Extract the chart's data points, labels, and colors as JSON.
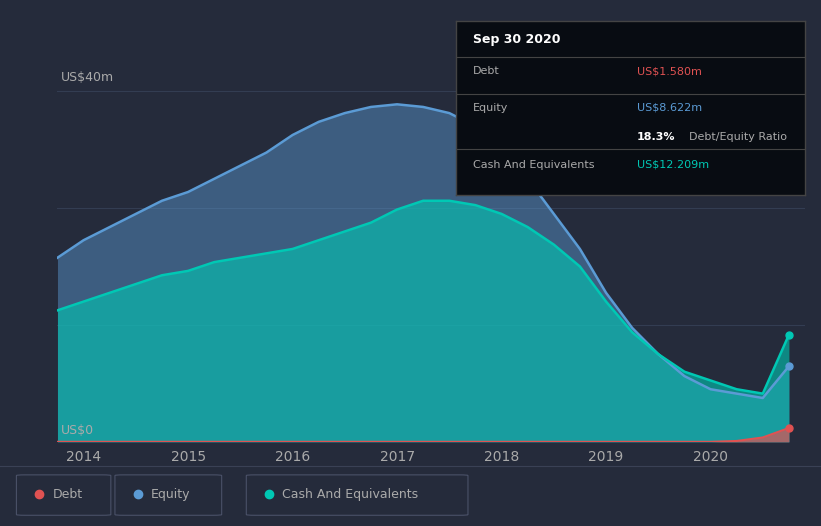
{
  "background_color": "#252b3b",
  "plot_bg_color": "#252b3b",
  "title": "Sep 30 2020",
  "debt_label": "Debt",
  "equity_label": "Equity",
  "cash_label": "Cash And Equivalents",
  "debt_value": "US$1.580m",
  "equity_value": "US$8.622m",
  "ratio_value": "18.3%",
  "ratio_label": "Debt/Equity Ratio",
  "cash_value": "US$12.209m",
  "debt_color": "#e05252",
  "equity_color": "#5b9bd5",
  "cash_color": "#00c8b4",
  "debt_value_color": "#e05252",
  "equity_value_color": "#5b9bd5",
  "cash_value_color": "#00c8b4",
  "grid_color": "#333d52",
  "text_color": "#aaaaaa",
  "tooltip_bg": "#080c12",
  "tooltip_border": "#444444",
  "years": [
    2013.75,
    2014.0,
    2014.25,
    2014.5,
    2014.75,
    2015.0,
    2015.25,
    2015.5,
    2015.75,
    2016.0,
    2016.25,
    2016.5,
    2016.75,
    2017.0,
    2017.25,
    2017.5,
    2017.75,
    2018.0,
    2018.25,
    2018.5,
    2018.75,
    2019.0,
    2019.25,
    2019.5,
    2019.75,
    2020.0,
    2020.25,
    2020.5,
    2020.75
  ],
  "equity": [
    21,
    23,
    24.5,
    26,
    27.5,
    28.5,
    30,
    31.5,
    33,
    35,
    36.5,
    37.5,
    38.2,
    38.5,
    38.2,
    37.5,
    36,
    33.5,
    30,
    26,
    22,
    17,
    13,
    10,
    7.5,
    6,
    5.5,
    5,
    8.622
  ],
  "cash": [
    15,
    16,
    17,
    18,
    19,
    19.5,
    20.5,
    21,
    21.5,
    22,
    23,
    24,
    25,
    26.5,
    27.5,
    27.5,
    27,
    26,
    24.5,
    22.5,
    20,
    16,
    12.5,
    10,
    8,
    7,
    6,
    5.5,
    12.209
  ],
  "debt": [
    0,
    0,
    0,
    0,
    0,
    0,
    0,
    0,
    0,
    0,
    0,
    0,
    0,
    0,
    0,
    0,
    0,
    0,
    0,
    0,
    0,
    0,
    0,
    0,
    0,
    0,
    0.1,
    0.5,
    1.58
  ],
  "xlim": [
    2013.75,
    2020.9
  ],
  "ylim": [
    0,
    42
  ],
  "xticks": [
    2014,
    2015,
    2016,
    2017,
    2018,
    2019,
    2020
  ],
  "xtick_labels": [
    "2014",
    "2015",
    "2016",
    "2017",
    "2018",
    "2019",
    "2020"
  ],
  "legend_items": [
    "Debt",
    "Equity",
    "Cash And Equivalents"
  ]
}
